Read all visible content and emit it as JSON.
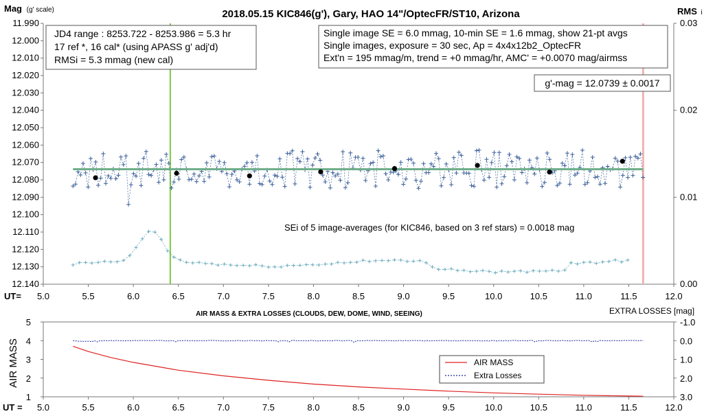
{
  "title": "2018.05.15  KIC846(g'),  Gary, HAO  14\"/OptecFR/ST10,  Arizona",
  "top_chart": {
    "ylabel_main": "Mag",
    "ylabel_sub": "(g' scale)",
    "right_label_main": "RMS",
    "right_label_sub": "i",
    "ut_label": "UT=",
    "xlim": [
      5.0,
      12.0
    ],
    "x_ticks": [
      "5.0",
      "5.5",
      "6.0",
      "6.5",
      "7.0",
      "7.5",
      "8.0",
      "8.5",
      "9.0",
      "9.5",
      "10.0",
      "10.5",
      "11.0",
      "11.5",
      "12.0"
    ],
    "ylim": [
      11.99,
      12.14
    ],
    "y_ticks": [
      "11.990",
      "12.000",
      "12.010",
      "12.020",
      "12.030",
      "12.040",
      "12.050",
      "12.060",
      "12.070",
      "12.080",
      "12.090",
      "12.100",
      "12.110",
      "12.120",
      "12.130",
      "12.140"
    ],
    "right_ylim": [
      0.0,
      0.03
    ],
    "right_ticks": [
      "0.00",
      "0.01",
      "0.02",
      "0.03"
    ],
    "info_box_left": [
      "JD4 range : 8253.722 - 8253.986 =  5.3  hr",
      "17 ref *, 16 cal* (using APASS g' adj'd)",
      "RMSi = 5.3 mmag (new cal)"
    ],
    "info_box_right": [
      "Single image SE = 6.0 mmag, 10-min SE = 1.6 mmag, show  21-pt avgs",
      "Single images, exposure = 30 sec, Ap = 4x4x12b2_OptecFR",
      "Ext'n = 195 mmag/m, trend =  +0 mmag/hr, AMC' = +0.0070 mag/airmss"
    ],
    "gmag_label": "g'-mag = 12.0739 ± 0.0017",
    "sei_label": "SEi of 5 image-averages (for KIC846, based on 3 ref stars) = 0.0018  mag",
    "colors": {
      "points": "#3a5f9a",
      "mean_line": "#6fae8a",
      "rms": "#6aabbd",
      "green_vline": "#7ac943",
      "pink_vline": "#f2b3b3"
    }
  },
  "bottom_chart": {
    "title": "AIR MASS & EXTRA LOSSES (CLOUDS, DEW, DOME, WIND, SEEING)",
    "ylabel": "AIR MASS",
    "right_label": "EXTRA LOSSES [mag]",
    "ut_label": "UT =",
    "xlim": [
      5.0,
      12.0
    ],
    "x_ticks": [
      "5.0",
      "5.5",
      "6.0",
      "6.5",
      "7.0",
      "7.5",
      "8.0",
      "8.5",
      "9.0",
      "9.5",
      "10.0",
      "10.5",
      "11.0",
      "11.5",
      "12.0"
    ],
    "ylim": [
      1,
      5
    ],
    "y_ticks": [
      "1",
      "2",
      "3",
      "4",
      "5"
    ],
    "right_ticks": [
      "-1.0",
      "0.0",
      "1.0",
      "2.0",
      "3.0"
    ],
    "legend": [
      "AIR MASS",
      "Extra Losses"
    ],
    "colors": {
      "airmass": "#e02020",
      "losses": "#1a2a9a"
    }
  },
  "chart_data": [
    {
      "type": "scatter",
      "title": "2018.05.15  KIC846(g'),  Gary, HAO  14\"/OptecFR/ST10,  Arizona",
      "xlabel": "UT=",
      "ylabel": "Mag (g' scale)",
      "xlim": [
        5.0,
        12.0
      ],
      "ylim": [
        12.14,
        11.99
      ],
      "grid": false,
      "series": [
        {
          "name": "image-averages",
          "x": [
            5.58,
            6.48,
            7.29,
            8.08,
            8.9,
            9.82,
            10.62,
            11.43
          ],
          "y": [
            12.0788,
            12.0762,
            12.0777,
            12.0754,
            12.0735,
            12.0717,
            12.0755,
            12.0693
          ]
        }
      ],
      "mean_mag": 12.0739,
      "markers_x": [
        6.41,
        11.66
      ]
    },
    {
      "type": "line",
      "title": "AIR MASS & EXTRA LOSSES (CLOUDS, DEW, DOME, WIND, SEEING)",
      "xlabel": "UT =",
      "ylabel": "AIR MASS",
      "xlim": [
        5.0,
        12.0
      ],
      "ylim": [
        1,
        5
      ],
      "series": [
        {
          "name": "AIR MASS",
          "x": [
            5.33,
            5.5,
            5.75,
            6.0,
            6.5,
            7.0,
            7.5,
            8.0,
            8.5,
            9.0,
            9.5,
            10.0,
            10.5,
            11.0,
            11.5,
            11.66
          ],
          "y": [
            3.7,
            3.42,
            3.1,
            2.84,
            2.42,
            2.12,
            1.88,
            1.68,
            1.53,
            1.41,
            1.3,
            1.21,
            1.14,
            1.08,
            1.04,
            1.03
          ]
        },
        {
          "name": "Extra Losses",
          "x": [
            5.33,
            6.0,
            7.0,
            8.0,
            9.0,
            10.0,
            11.0,
            11.66
          ],
          "y": [
            0.0,
            0.0,
            0.0,
            0.03,
            0.0,
            0.0,
            0.0,
            0.0
          ]
        }
      ]
    }
  ]
}
